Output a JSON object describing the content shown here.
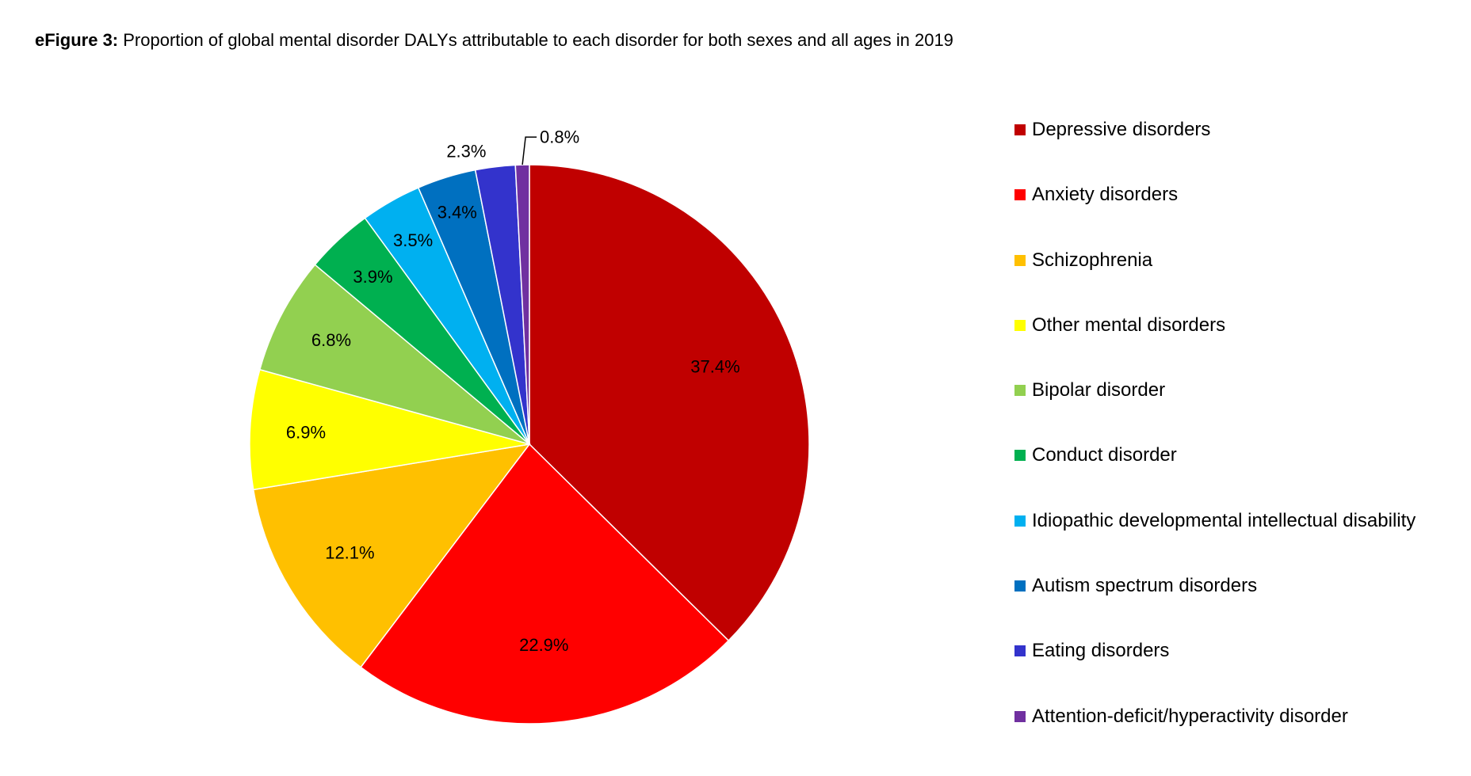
{
  "figure": {
    "title_bold": "eFigure 3:",
    "title_rest": " Proportion of global mental disorder DALYs attributable to each disorder for both sexes and all ages in 2019"
  },
  "chart_data": {
    "type": "pie",
    "title": "eFigure 3: Proportion of global mental disorder DALYs attributable to each disorder for both sexes and all ages in 2019",
    "start_angle": "12 o'clock, clockwise",
    "legend_position": "right",
    "slices": [
      {
        "label": "Depressive disorders",
        "value": 37.4,
        "display": "37.4%",
        "color": "#C00000"
      },
      {
        "label": "Anxiety disorders",
        "value": 22.9,
        "display": "22.9%",
        "color": "#FF0000"
      },
      {
        "label": "Schizophrenia",
        "value": 12.1,
        "display": "12.1%",
        "color": "#FFC000"
      },
      {
        "label": "Other mental disorders",
        "value": 6.9,
        "display": "6.9%",
        "color": "#FFFF00"
      },
      {
        "label": "Bipolar disorder",
        "value": 6.8,
        "display": "6.8%",
        "color": "#92D050"
      },
      {
        "label": "Conduct disorder",
        "value": 3.9,
        "display": "3.9%",
        "color": "#00B050"
      },
      {
        "label": "Idiopathic developmental intellectual disability",
        "value": 3.5,
        "display": "3.5%",
        "color": "#00B0F0"
      },
      {
        "label": "Autism spectrum disorders",
        "value": 3.4,
        "display": "3.4%",
        "color": "#0070C0"
      },
      {
        "label": "Eating disorders",
        "value": 2.3,
        "display": "2.3%",
        "color": "#3333CC"
      },
      {
        "label": "Attention-deficit/hyperactivity disorder",
        "value": 0.8,
        "display": "0.8%",
        "color": "#7030A0"
      }
    ]
  }
}
